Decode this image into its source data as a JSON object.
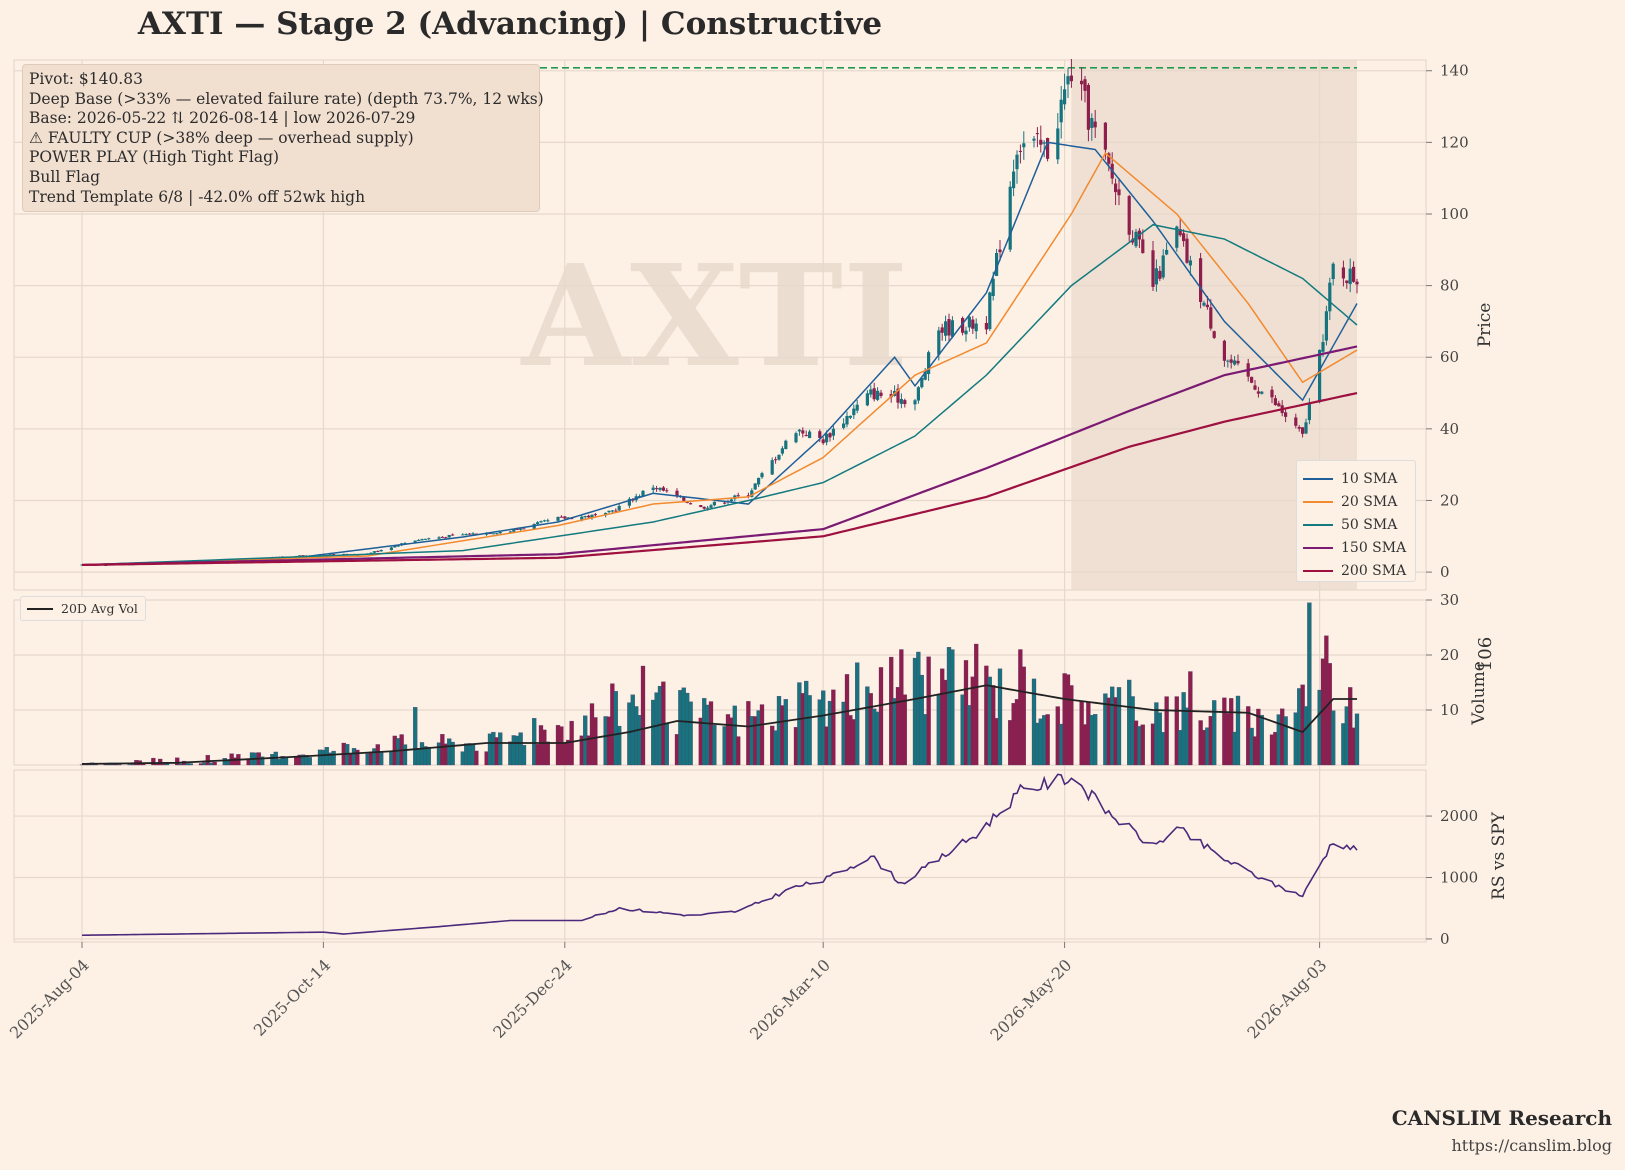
{
  "title": "AXTI  —  Stage 2 (Advancing)  |  Constructive",
  "watermark": "AXTI",
  "info_box": {
    "lines": [
      "Pivot: $140.83",
      "Deep Base (>33% — elevated failure rate)  (depth 73.7%, 12 wks)",
      "Base: 2026-05-22 ⇅ 2026-08-14  |  low 2026-07-29",
      "⚠ FAULTY CUP (>38% deep — overhead supply)",
      "POWER PLAY (High Tight Flag)",
      "Bull Flag",
      "Trend Template 6/8  |  -42.0% off 52wk high"
    ]
  },
  "legend": {
    "items": [
      {
        "label": "10 SMA",
        "color": "#1f5f99"
      },
      {
        "label": "20 SMA",
        "color": "#f28a2f"
      },
      {
        "label": "50 SMA",
        "color": "#137a7f"
      },
      {
        "label": "150 SMA",
        "color": "#7b1a73"
      },
      {
        "label": "200 SMA",
        "color": "#9e1040"
      }
    ],
    "volume_label": "20D Avg Vol"
  },
  "footer": {
    "brand": "CANSLIM Research",
    "url": "https://canslim.blog"
  },
  "colors": {
    "background": "#fdf1e6",
    "up_candle": "#17747f",
    "down_candle": "#8e1f4d",
    "pivot_line": "#1f9a4f",
    "base_shade": "#e9d9cc",
    "rs_line": "#4b2a7b",
    "grid": "#e7d8cc"
  },
  "chart_data": [
    {
      "type": "candlestick",
      "panel": "price",
      "ylabel": "Price",
      "ylim": [
        -5,
        143
      ],
      "yticks": [
        0,
        20,
        40,
        60,
        80,
        100,
        120,
        140
      ],
      "xlim": [
        "2025-08-04",
        "2026-08-14"
      ],
      "xticks": [
        "2025-Aug-04",
        "2025-Oct-14",
        "2025-Dec-24",
        "2026-Mar-10",
        "2026-May-20",
        "2026-Aug-03"
      ],
      "pivot": 140.83,
      "base_start": "2026-05-22",
      "base_end": "2026-08-14",
      "close_path": [
        {
          "x": "2025-08-04",
          "y": 2.0
        },
        {
          "x": "2025-08-25",
          "y": 2.3
        },
        {
          "x": "2025-09-15",
          "y": 3.2
        },
        {
          "x": "2025-10-06",
          "y": 4.5
        },
        {
          "x": "2025-10-27",
          "y": 5.2
        },
        {
          "x": "2025-11-10",
          "y": 9.0
        },
        {
          "x": "2025-11-24",
          "y": 10.5
        },
        {
          "x": "2025-12-08",
          "y": 11.5
        },
        {
          "x": "2025-12-22",
          "y": 15.0
        },
        {
          "x": "2026-01-05",
          "y": 16.0
        },
        {
          "x": "2026-01-19",
          "y": 24.0
        },
        {
          "x": "2026-02-02",
          "y": 18.0
        },
        {
          "x": "2026-02-16",
          "y": 22.0
        },
        {
          "x": "2026-03-02",
          "y": 40.0
        },
        {
          "x": "2026-03-10",
          "y": 37.0
        },
        {
          "x": "2026-03-24",
          "y": 50.0
        },
        {
          "x": "2026-04-06",
          "y": 48.0
        },
        {
          "x": "2026-04-13",
          "y": 68.0
        },
        {
          "x": "2026-04-27",
          "y": 70.0
        },
        {
          "x": "2026-05-06",
          "y": 120.0
        },
        {
          "x": "2026-05-15",
          "y": 118.0
        },
        {
          "x": "2026-05-22",
          "y": 140.0
        },
        {
          "x": "2026-06-01",
          "y": 115.0
        },
        {
          "x": "2026-06-15",
          "y": 80.0
        },
        {
          "x": "2026-06-22",
          "y": 95.0
        },
        {
          "x": "2026-07-06",
          "y": 60.0
        },
        {
          "x": "2026-07-20",
          "y": 48.0
        },
        {
          "x": "2026-07-29",
          "y": 38.0
        },
        {
          "x": "2026-08-03",
          "y": 60.0
        },
        {
          "x": "2026-08-07",
          "y": 85.0
        },
        {
          "x": "2026-08-14",
          "y": 82.0
        }
      ],
      "series": [
        {
          "name": "10 SMA",
          "points": [
            {
              "x": "2025-08-04",
              "y": 2.0
            },
            {
              "x": "2025-10-06",
              "y": 4.0
            },
            {
              "x": "2025-11-24",
              "y": 9.8
            },
            {
              "x": "2025-12-22",
              "y": 14.0
            },
            {
              "x": "2026-01-19",
              "y": 22.0
            },
            {
              "x": "2026-02-16",
              "y": 19.0
            },
            {
              "x": "2026-03-10",
              "y": 38.0
            },
            {
              "x": "2026-03-31",
              "y": 60.0
            },
            {
              "x": "2026-04-06",
              "y": 52.0
            },
            {
              "x": "2026-04-27",
              "y": 78.0
            },
            {
              "x": "2026-05-15",
              "y": 120.0
            },
            {
              "x": "2026-05-29",
              "y": 118.0
            },
            {
              "x": "2026-06-15",
              "y": 98.0
            },
            {
              "x": "2026-07-06",
              "y": 70.0
            },
            {
              "x": "2026-07-29",
              "y": 48.0
            },
            {
              "x": "2026-08-14",
              "y": 75.0
            }
          ]
        },
        {
          "name": "20 SMA",
          "points": [
            {
              "x": "2025-08-04",
              "y": 2.0
            },
            {
              "x": "2025-10-27",
              "y": 4.5
            },
            {
              "x": "2025-12-22",
              "y": 13.0
            },
            {
              "x": "2026-01-19",
              "y": 19.0
            },
            {
              "x": "2026-02-16",
              "y": 21.0
            },
            {
              "x": "2026-03-10",
              "y": 32.0
            },
            {
              "x": "2026-04-06",
              "y": 55.0
            },
            {
              "x": "2026-04-27",
              "y": 64.0
            },
            {
              "x": "2026-05-22",
              "y": 100.0
            },
            {
              "x": "2026-06-01",
              "y": 117.0
            },
            {
              "x": "2026-06-22",
              "y": 100.0
            },
            {
              "x": "2026-07-13",
              "y": 75.0
            },
            {
              "x": "2026-07-29",
              "y": 53.0
            },
            {
              "x": "2026-08-14",
              "y": 62.0
            }
          ]
        },
        {
          "name": "50 SMA",
          "points": [
            {
              "x": "2025-08-04",
              "y": 2.0
            },
            {
              "x": "2025-11-24",
              "y": 6.0
            },
            {
              "x": "2026-01-19",
              "y": 14.0
            },
            {
              "x": "2026-02-16",
              "y": 20.0
            },
            {
              "x": "2026-03-10",
              "y": 25.0
            },
            {
              "x": "2026-04-06",
              "y": 38.0
            },
            {
              "x": "2026-04-27",
              "y": 55.0
            },
            {
              "x": "2026-05-22",
              "y": 80.0
            },
            {
              "x": "2026-06-15",
              "y": 97.0
            },
            {
              "x": "2026-07-06",
              "y": 93.0
            },
            {
              "x": "2026-07-29",
              "y": 82.0
            },
            {
              "x": "2026-08-14",
              "y": 69.0
            }
          ]
        },
        {
          "name": "150 SMA",
          "points": [
            {
              "x": "2025-08-04",
              "y": 2.0
            },
            {
              "x": "2025-12-22",
              "y": 5.0
            },
            {
              "x": "2026-03-10",
              "y": 12.0
            },
            {
              "x": "2026-04-27",
              "y": 29.0
            },
            {
              "x": "2026-06-08",
              "y": 45.0
            },
            {
              "x": "2026-07-06",
              "y": 55.0
            },
            {
              "x": "2026-08-14",
              "y": 63.0
            }
          ]
        },
        {
          "name": "200 SMA",
          "points": [
            {
              "x": "2025-08-04",
              "y": 2.0
            },
            {
              "x": "2025-12-22",
              "y": 4.0
            },
            {
              "x": "2026-03-10",
              "y": 10.0
            },
            {
              "x": "2026-04-27",
              "y": 21.0
            },
            {
              "x": "2026-06-08",
              "y": 35.0
            },
            {
              "x": "2026-07-06",
              "y": 42.0
            },
            {
              "x": "2026-08-14",
              "y": 50.0
            }
          ]
        }
      ]
    },
    {
      "type": "bar",
      "panel": "volume",
      "ylabel": "Volume",
      "scale_label": "10^6",
      "ylim": [
        0,
        30
      ],
      "yticks": [
        10,
        20,
        30
      ],
      "volume_path": [
        {
          "x": "2025-08-04",
          "y": 0.2
        },
        {
          "x": "2025-09-01",
          "y": 1.0
        },
        {
          "x": "2025-10-06",
          "y": 2.0
        },
        {
          "x": "2025-11-03",
          "y": 4.0
        },
        {
          "x": "2025-12-01",
          "y": 4.0
        },
        {
          "x": "2025-12-29",
          "y": 8.0
        },
        {
          "x": "2026-01-12",
          "y": 12.0
        },
        {
          "x": "2026-02-09",
          "y": 8.0
        },
        {
          "x": "2026-03-09",
          "y": 11.0
        },
        {
          "x": "2026-04-06",
          "y": 16.0
        },
        {
          "x": "2026-04-27",
          "y": 14.0
        },
        {
          "x": "2026-05-25",
          "y": 12.0
        },
        {
          "x": "2026-06-22",
          "y": 10.0
        },
        {
          "x": "2026-07-20",
          "y": 8.0
        },
        {
          "x": "2026-08-03",
          "y": 16.0
        },
        {
          "x": "2026-08-14",
          "y": 10.0
        }
      ],
      "spikes": [
        {
          "x": "2025-08-25",
          "y": 4.2
        },
        {
          "x": "2025-10-20",
          "y": 4.0
        },
        {
          "x": "2025-11-10",
          "y": 10.5
        },
        {
          "x": "2025-12-15",
          "y": 8.5
        },
        {
          "x": "2026-01-16",
          "y": 18.0
        },
        {
          "x": "2026-04-02",
          "y": 21.0
        },
        {
          "x": "2026-04-24",
          "y": 22.0
        },
        {
          "x": "2026-05-07",
          "y": 21.0
        },
        {
          "x": "2026-06-26",
          "y": 17.0
        },
        {
          "x": "2026-07-31",
          "y": 29.5
        },
        {
          "x": "2026-08-05",
          "y": 23.5
        }
      ],
      "series": [
        {
          "name": "20D Avg Vol",
          "points": [
            {
              "x": "2025-08-04",
              "y": 0.2
            },
            {
              "x": "2025-09-01",
              "y": 0.4
            },
            {
              "x": "2025-10-06",
              "y": 1.5
            },
            {
              "x": "2025-11-03",
              "y": 2.5
            },
            {
              "x": "2025-12-01",
              "y": 4.0
            },
            {
              "x": "2025-12-24",
              "y": 4.0
            },
            {
              "x": "2026-01-12",
              "y": 6.0
            },
            {
              "x": "2026-01-26",
              "y": 8.0
            },
            {
              "x": "2026-02-16",
              "y": 7.0
            },
            {
              "x": "2026-03-10",
              "y": 9.0
            },
            {
              "x": "2026-04-06",
              "y": 12.0
            },
            {
              "x": "2026-04-27",
              "y": 14.5
            },
            {
              "x": "2026-05-20",
              "y": 12.0
            },
            {
              "x": "2026-06-15",
              "y": 10.0
            },
            {
              "x": "2026-07-13",
              "y": 9.5
            },
            {
              "x": "2026-07-29",
              "y": 6.0
            },
            {
              "x": "2026-08-07",
              "y": 12.0
            },
            {
              "x": "2026-08-14",
              "y": 12.0
            }
          ]
        }
      ]
    },
    {
      "type": "line",
      "panel": "relative_strength",
      "ylabel": "RS vs SPY",
      "ylim": [
        -50,
        2750
      ],
      "yticks": [
        0,
        1000,
        2000
      ],
      "series": [
        {
          "name": "RS vs SPY",
          "points": [
            {
              "x": "2025-08-04",
              "y": 60
            },
            {
              "x": "2025-09-15",
              "y": 90
            },
            {
              "x": "2025-10-14",
              "y": 110
            },
            {
              "x": "2025-10-20",
              "y": 80
            },
            {
              "x": "2025-11-17",
              "y": 200
            },
            {
              "x": "2025-12-08",
              "y": 300
            },
            {
              "x": "2025-12-29",
              "y": 300
            },
            {
              "x": "2026-01-09",
              "y": 500
            },
            {
              "x": "2026-01-30",
              "y": 380
            },
            {
              "x": "2026-02-13",
              "y": 450
            },
            {
              "x": "2026-03-02",
              "y": 850
            },
            {
              "x": "2026-03-10",
              "y": 950
            },
            {
              "x": "2026-03-24",
              "y": 1350
            },
            {
              "x": "2026-04-02",
              "y": 900
            },
            {
              "x": "2026-04-24",
              "y": 1700
            },
            {
              "x": "2026-05-07",
              "y": 2400
            },
            {
              "x": "2026-05-22",
              "y": 2650
            },
            {
              "x": "2026-06-01",
              "y": 2100
            },
            {
              "x": "2026-06-15",
              "y": 1500
            },
            {
              "x": "2026-06-22",
              "y": 1800
            },
            {
              "x": "2026-07-06",
              "y": 1300
            },
            {
              "x": "2026-07-20",
              "y": 900
            },
            {
              "x": "2026-07-29",
              "y": 700
            },
            {
              "x": "2026-08-03",
              "y": 1200
            },
            {
              "x": "2026-08-07",
              "y": 1600
            },
            {
              "x": "2026-08-14",
              "y": 1450
            }
          ]
        }
      ]
    }
  ]
}
